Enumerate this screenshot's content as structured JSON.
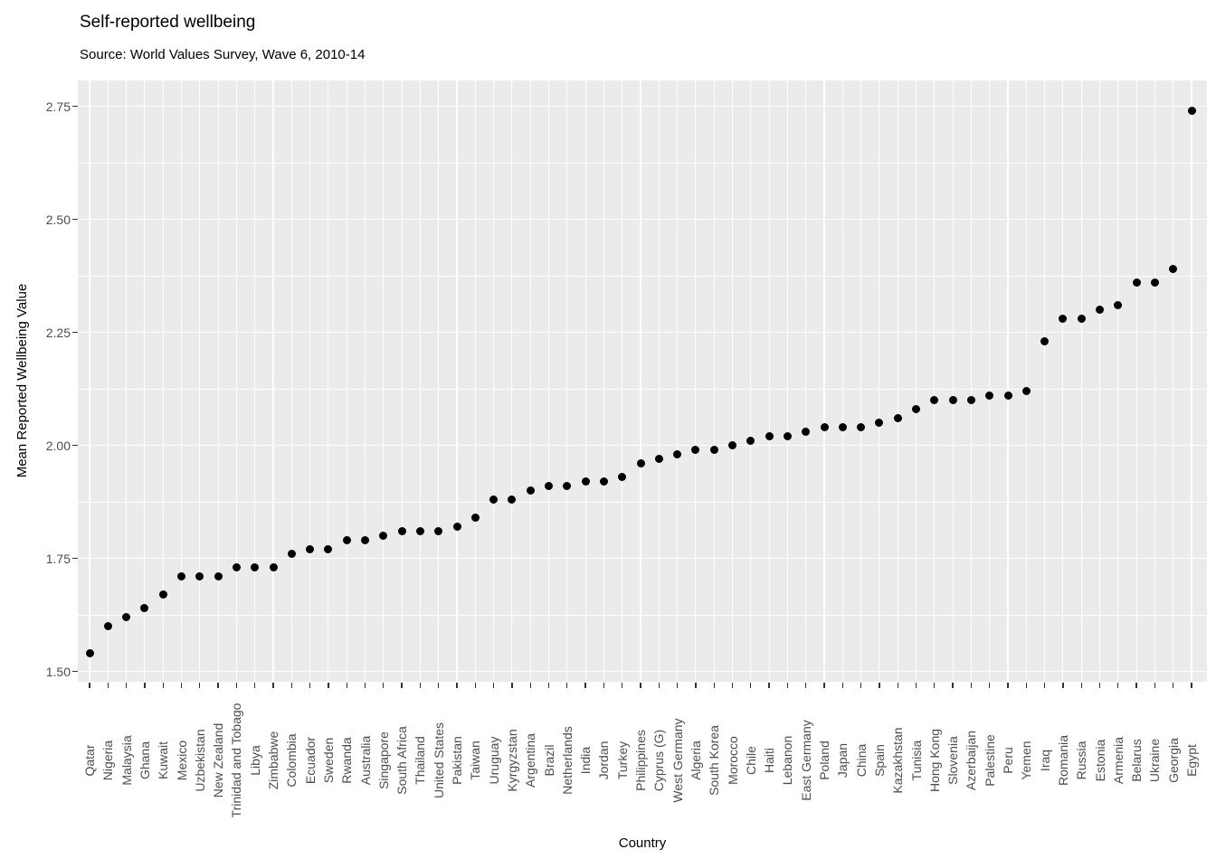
{
  "chart_data": {
    "type": "scatter",
    "title": "Self-reported wellbeing",
    "subtitle": "Source: World Values Survey, Wave 6, 2010-14",
    "xlabel": "Country",
    "ylabel": "Mean Reported Wellbeing Value",
    "ylim": [
      1.477,
      2.807
    ],
    "yticks": [
      1.5,
      1.75,
      2.0,
      2.25,
      2.5,
      2.75
    ],
    "ytick_labels": [
      "1.50",
      "1.75",
      "2.00",
      "2.25",
      "2.50",
      "2.75"
    ],
    "minor_gridlines": [
      1.625,
      1.875,
      2.125,
      2.375,
      2.625
    ],
    "grid": true,
    "legend": false,
    "categories": [
      "Qatar",
      "Nigeria",
      "Malaysia",
      "Ghana",
      "Kuwait",
      "Mexico",
      "Uzbekistan",
      "New Zealand",
      "Trinidad and Tobago",
      "Libya",
      "Zimbabwe",
      "Colombia",
      "Ecuador",
      "Sweden",
      "Rwanda",
      "Australia",
      "Singapore",
      "South Africa",
      "Thailand",
      "United States",
      "Pakistan",
      "Taiwan",
      "Uruguay",
      "Kyrgyzstan",
      "Argentina",
      "Brazil",
      "Netherlands",
      "India",
      "Jordan",
      "Turkey",
      "Philippines",
      "Cyprus (G)",
      "West Germany",
      "Algeria",
      "South Korea",
      "Morocco",
      "Chile",
      "Haiti",
      "Lebanon",
      "East Germany",
      "Poland",
      "Japan",
      "China",
      "Spain",
      "Kazakhstan",
      "Tunisia",
      "Hong Kong",
      "Slovenia",
      "Azerbaijan",
      "Palestine",
      "Peru",
      "Yemen",
      "Iraq",
      "Romania",
      "Russia",
      "Estonia",
      "Armenia",
      "Belarus",
      "Ukraine",
      "Georgia",
      "Egypt"
    ],
    "values": [
      1.54,
      1.6,
      1.62,
      1.64,
      1.67,
      1.71,
      1.71,
      1.71,
      1.73,
      1.73,
      1.73,
      1.76,
      1.77,
      1.77,
      1.79,
      1.79,
      1.8,
      1.81,
      1.81,
      1.81,
      1.82,
      1.84,
      1.88,
      1.88,
      1.9,
      1.91,
      1.91,
      1.92,
      1.92,
      1.93,
      1.96,
      1.97,
      1.98,
      1.99,
      1.99,
      2.0,
      2.01,
      2.02,
      2.02,
      2.03,
      2.04,
      2.04,
      2.04,
      2.05,
      2.06,
      2.08,
      2.1,
      2.1,
      2.1,
      2.11,
      2.11,
      2.12,
      2.23,
      2.28,
      2.28,
      2.3,
      2.31,
      2.36,
      2.36,
      2.39,
      2.74
    ],
    "colors": {
      "background": "#FFFFFF",
      "panel_bg": "#EBEBEB",
      "grid": "#FFFFFF",
      "point": "#000000",
      "tick_label": "#4D4D4D",
      "tick_mark": "#333333",
      "text": "#000000"
    }
  }
}
